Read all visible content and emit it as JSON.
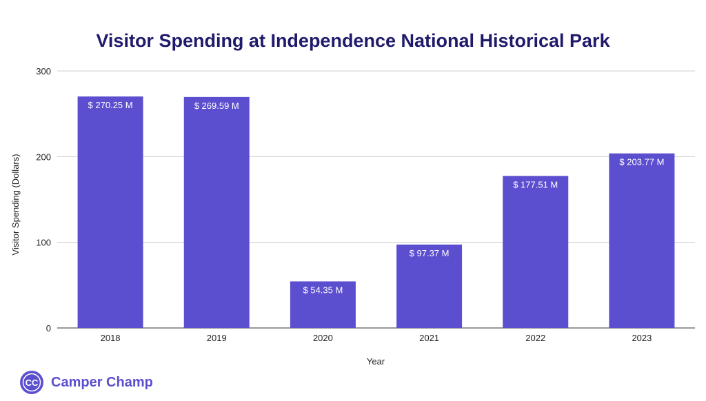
{
  "chart_data": {
    "type": "bar",
    "title": "Visitor Spending at Independence National Historical Park",
    "xlabel": "Year",
    "ylabel": "Visitor Spending (Dollars)",
    "categories": [
      "2018",
      "2019",
      "2020",
      "2021",
      "2022",
      "2023"
    ],
    "values": [
      270.25,
      269.59,
      54.35,
      97.37,
      177.51,
      203.77
    ],
    "data_labels": [
      "$ 270.25 M",
      "$ 269.59 M",
      "$ 54.35 M",
      "$ 97.37 M",
      "$ 177.51 M",
      "$ 203.77 M"
    ],
    "ylim": [
      0,
      300
    ],
    "yticks": [
      "0",
      "100",
      "200",
      "300"
    ],
    "grid": true,
    "bar_color": "#5b4fcf",
    "title_color": "#1f1a6b"
  },
  "brand": {
    "logo_text": "CC",
    "name": "Camper Champ",
    "color": "#5b4fcf"
  }
}
